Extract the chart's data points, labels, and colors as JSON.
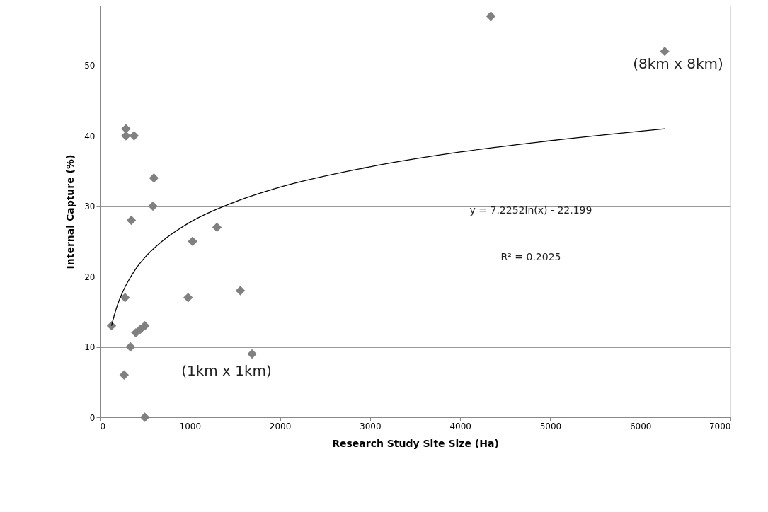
{
  "chart_data": {
    "type": "scatter",
    "xlabel": "Research Study Site Size (Ha)",
    "ylabel": "Internal Capture (%)",
    "xlim": [
      0,
      7000
    ],
    "xticks": [
      0,
      1000,
      2000,
      3000,
      4000,
      5000,
      6000,
      7000
    ],
    "ylim": [
      0,
      58.5
    ],
    "yticks": [
      0,
      10,
      20,
      30,
      40,
      50
    ],
    "grid": "y",
    "series": [
      {
        "marker": "diamond",
        "color": "#808080",
        "x": [
          130,
          270,
          280,
          290,
          290,
          340,
          350,
          380,
          400,
          450,
          500,
          500,
          590,
          600,
          980,
          1030,
          1300,
          1560,
          1690,
          4340,
          6270
        ],
        "values": [
          13,
          6,
          17,
          40,
          41,
          10,
          28,
          40,
          12,
          12.5,
          13,
          0,
          30,
          34,
          17,
          25,
          27,
          18,
          9,
          57,
          52
        ]
      },
      {
        "type": "line",
        "marker": "none",
        "color": "#000000",
        "x": [
          130,
          150,
          200,
          250,
          300,
          400,
          500,
          700,
          1000,
          1500,
          2000,
          3000,
          4000,
          5000,
          6270
        ],
        "values": [
          13.0,
          14.0,
          16.1,
          17.7,
          19.0,
          21.1,
          22.7,
          25.1,
          27.7,
          30.6,
          32.7,
          35.6,
          37.7,
          39.3,
          41.0
        ]
      }
    ],
    "annotations": [
      "(8km x 8km)",
      "(1km x 1km)",
      "y = 7.2252ln(x) - 22.199",
      "R² = 0.2025"
    ]
  }
}
